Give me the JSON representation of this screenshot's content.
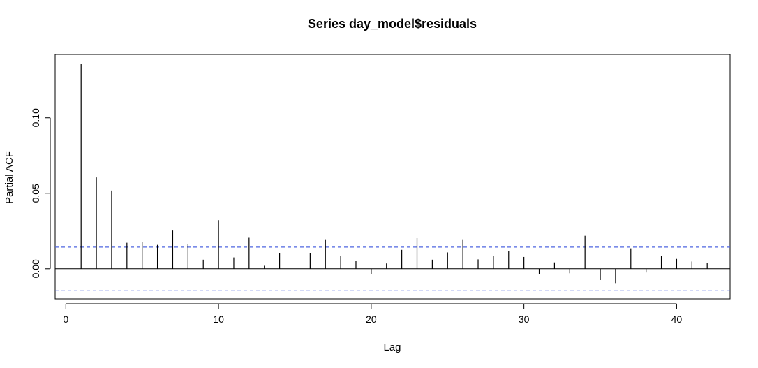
{
  "chart_data": {
    "type": "bar",
    "title": "Series  day_model$residuals",
    "xlabel": "Lag",
    "ylabel": "Partial ACF",
    "xlim": [
      -0.7,
      43.5
    ],
    "ylim": [
      -0.02,
      0.142
    ],
    "x_ticks": [
      0,
      10,
      20,
      30,
      40
    ],
    "x_tick_labels": [
      "0",
      "10",
      "20",
      "30",
      "40"
    ],
    "y_ticks": [
      0.0,
      0.05,
      0.1
    ],
    "y_tick_labels": [
      "0.00",
      "0.05",
      "0.10"
    ],
    "confidence_limit": 0.0143,
    "confidence_color": "#4f66e0",
    "grid": false,
    "x": [
      1,
      2,
      3,
      4,
      5,
      6,
      7,
      8,
      9,
      10,
      11,
      12,
      13,
      14,
      15,
      16,
      17,
      18,
      19,
      20,
      21,
      22,
      23,
      24,
      25,
      26,
      27,
      28,
      29,
      30,
      31,
      32,
      33,
      34,
      35,
      36,
      37,
      38,
      39,
      40,
      41,
      42
    ],
    "values": [
      0.136,
      0.0605,
      0.0518,
      0.0172,
      0.0175,
      0.0158,
      0.0253,
      0.0165,
      0.006,
      0.0322,
      0.0075,
      0.0205,
      0.002,
      0.0105,
      0.0,
      0.0102,
      0.0195,
      0.0085,
      0.005,
      -0.0035,
      0.0035,
      0.0125,
      0.0203,
      0.006,
      0.0108,
      0.0195,
      0.0062,
      0.0085,
      0.0115,
      0.0078,
      -0.0035,
      0.0042,
      -0.003,
      0.0218,
      -0.0075,
      -0.0095,
      0.0135,
      -0.0025,
      0.0085,
      0.0065,
      0.0048,
      0.0038
    ]
  }
}
